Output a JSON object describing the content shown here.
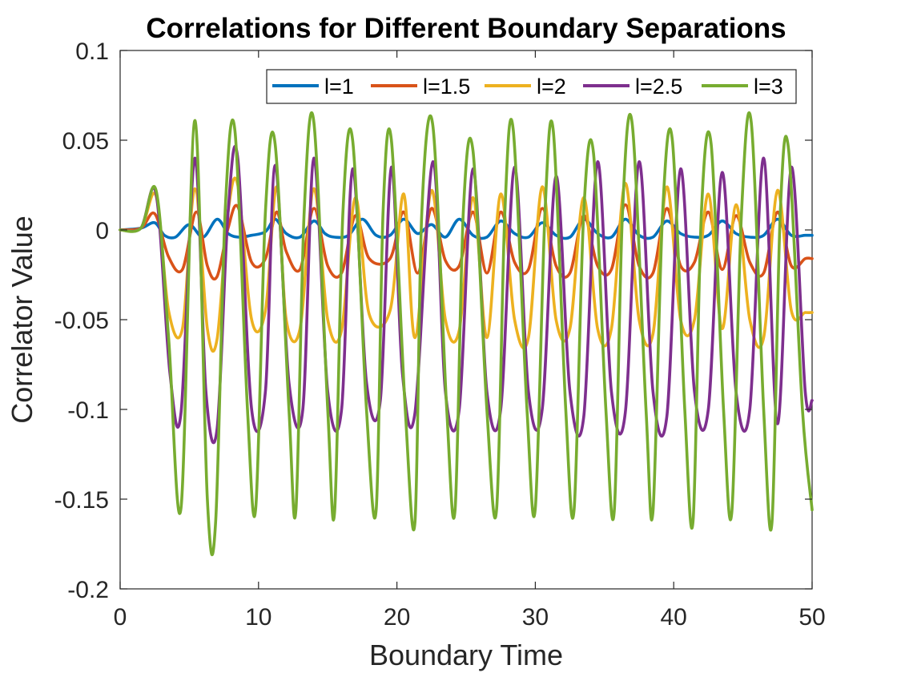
{
  "chart_data": {
    "type": "line",
    "title": "Correlations for Different Boundary Separations",
    "xlabel": "Boundary Time",
    "ylabel": "Correlator Value",
    "xlim": [
      0,
      50
    ],
    "ylim": [
      -0.2,
      0.1
    ],
    "xticks": [
      0,
      10,
      20,
      30,
      40,
      50
    ],
    "xtick_labels": [
      "0",
      "10",
      "20",
      "30",
      "40",
      "50"
    ],
    "yticks": [
      0.1,
      0.05,
      0,
      -0.05,
      -0.1,
      -0.15,
      -0.2
    ],
    "ytick_labels": [
      "0.1",
      "0.05",
      "0",
      "-0.05",
      "-0.1",
      "-0.15",
      "-0.2"
    ],
    "grid": false,
    "legend_position": "top-right",
    "legend_orientation": "horizontal",
    "series": [
      {
        "name": "l=1",
        "color": "#0072BD",
        "x": [
          0,
          1.5,
          2.5,
          3.2,
          4,
          5,
          6,
          7,
          7.8,
          8.6,
          9.5,
          10.5,
          11.2,
          12,
          13,
          14,
          14.8,
          15.5,
          16.5,
          17.5,
          18.5,
          19.5,
          20.5,
          21.5,
          22.5,
          23.5,
          24.5,
          25.5,
          26.5,
          27.5,
          28.5,
          29.5,
          30.5,
          31.5,
          32.5,
          33.5,
          34.5,
          35.5,
          36.5,
          37.5,
          38.5,
          39.5,
          40.5,
          41.5,
          42.5,
          43.5,
          44.5,
          45.5,
          46.5,
          47.5,
          48.5,
          49.5,
          50
        ],
        "y": [
          0,
          0.001,
          0.004,
          -0.003,
          -0.004,
          0.003,
          -0.004,
          0.006,
          -0.002,
          -0.004,
          -0.003,
          -0.001,
          0.006,
          -0.002,
          -0.004,
          0.005,
          -0.002,
          -0.004,
          -0.003,
          0.006,
          -0.003,
          -0.003,
          0.006,
          -0.002,
          0.003,
          -0.004,
          0.006,
          -0.003,
          -0.004,
          0.005,
          -0.002,
          -0.004,
          0.004,
          -0.003,
          -0.004,
          0.006,
          -0.002,
          -0.004,
          0.006,
          -0.003,
          -0.004,
          0.005,
          -0.002,
          -0.004,
          -0.003,
          0.005,
          -0.002,
          -0.004,
          -0.003,
          0.006,
          -0.003,
          -0.003,
          -0.003
        ]
      },
      {
        "name": "l=1.5",
        "color": "#D95319",
        "x": [
          0,
          1.5,
          2.5,
          3.5,
          4.5,
          5.5,
          6.3,
          7,
          7.8,
          8.5,
          9.5,
          10.5,
          11.3,
          12,
          13,
          14,
          15,
          16,
          17,
          18,
          19.5,
          20.5,
          21.5,
          22.5,
          23.5,
          24.5,
          25.5,
          26.5,
          27.5,
          28.5,
          29.5,
          30.5,
          31.5,
          32.5,
          33.5,
          34.5,
          35.5,
          36.5,
          37.5,
          38.5,
          39.5,
          40.5,
          41.5,
          42.5,
          43.5,
          44.5,
          45.5,
          46.5,
          47.5,
          48.5,
          49.5,
          50
        ],
        "y": [
          0,
          0.001,
          0.009,
          -0.015,
          -0.022,
          0.01,
          -0.02,
          -0.026,
          0.001,
          0.013,
          -0.018,
          -0.016,
          0.01,
          -0.012,
          -0.022,
          0.012,
          -0.02,
          -0.024,
          0.008,
          -0.016,
          -0.016,
          0.01,
          -0.024,
          0.012,
          -0.017,
          -0.02,
          0.01,
          -0.024,
          0.01,
          -0.018,
          -0.022,
          0.012,
          -0.02,
          -0.024,
          0.008,
          -0.02,
          -0.022,
          0.014,
          -0.02,
          -0.024,
          0.012,
          -0.02,
          -0.018,
          0.01,
          -0.022,
          0.008,
          -0.018,
          -0.024,
          0.01,
          -0.02,
          -0.016,
          -0.016
        ]
      },
      {
        "name": "l=2",
        "color": "#EDB120",
        "x": [
          0,
          1.5,
          2.6,
          3.5,
          4.5,
          5.4,
          6.3,
          7,
          7.8,
          8.5,
          9.5,
          10.5,
          11.3,
          12,
          13,
          14,
          15,
          16,
          17,
          18,
          19.5,
          20.5,
          21.3,
          22.5,
          23.5,
          24.5,
          25.5,
          26.5,
          27.5,
          28.5,
          29.5,
          30.5,
          31.5,
          32.5,
          33.5,
          34.5,
          35.5,
          36.5,
          37.5,
          38.5,
          39.5,
          40.5,
          41.5,
          42.5,
          43.5,
          44.5,
          45.5,
          46.5,
          47.5,
          48.5,
          49.5,
          50
        ],
        "y": [
          0,
          0.001,
          0.019,
          -0.045,
          -0.055,
          0.023,
          -0.055,
          -0.061,
          0.01,
          0.025,
          -0.05,
          -0.045,
          0.024,
          -0.05,
          -0.055,
          0.023,
          -0.05,
          -0.056,
          0.018,
          -0.047,
          -0.045,
          0.02,
          -0.06,
          0.022,
          -0.05,
          -0.056,
          0.018,
          -0.06,
          0.02,
          -0.05,
          -0.06,
          0.024,
          -0.05,
          -0.055,
          0.018,
          -0.055,
          -0.055,
          0.026,
          -0.05,
          -0.058,
          0.024,
          -0.05,
          -0.05,
          0.02,
          -0.055,
          0.014,
          -0.05,
          -0.06,
          0.022,
          -0.045,
          -0.046,
          -0.046
        ]
      },
      {
        "name": "l=2.5",
        "color": "#7E2F8E",
        "x": [
          0,
          1.5,
          2.6,
          3.6,
          4.4,
          5.4,
          6.2,
          7,
          7.8,
          8.5,
          9.5,
          10.5,
          11.2,
          12.2,
          13.2,
          14,
          15,
          16,
          16.8,
          17.8,
          18.8,
          19.6,
          20.4,
          21.3,
          22.6,
          23.5,
          24.5,
          25.5,
          26.5,
          27.5,
          28.5,
          29.5,
          30.5,
          31.5,
          32.5,
          33.5,
          34.5,
          35.5,
          36.5,
          37.5,
          38.5,
          39.5,
          40.5,
          41.5,
          42.5,
          43.5,
          44.5,
          45.5,
          46.5,
          47.5,
          48.5,
          49.5,
          50
        ],
        "y": [
          0,
          0.001,
          0.02,
          -0.08,
          -0.102,
          0.04,
          -0.09,
          -0.111,
          0.01,
          0.04,
          -0.1,
          -0.09,
          0.036,
          -0.085,
          -0.1,
          0.04,
          -0.09,
          -0.1,
          0.034,
          -0.085,
          -0.095,
          0.035,
          -0.08,
          -0.102,
          0.038,
          -0.09,
          -0.1,
          0.034,
          -0.09,
          -0.1,
          0.035,
          -0.09,
          -0.1,
          0.03,
          -0.09,
          -0.104,
          0.038,
          -0.09,
          -0.102,
          0.038,
          -0.09,
          -0.104,
          0.034,
          -0.09,
          -0.1,
          0.032,
          -0.09,
          -0.1,
          0.04,
          -0.108,
          0.035,
          -0.09,
          -0.095
        ]
      },
      {
        "name": "l=3",
        "color": "#77AC30",
        "x": [
          0,
          1.5,
          2.6,
          3.5,
          4.4,
          5.4,
          6.3,
          6.9,
          7.6,
          8.3,
          9.2,
          9.8,
          10.5,
          11.2,
          12.2,
          12.7,
          13.3,
          14,
          15,
          15.5,
          16.1,
          16.8,
          17.8,
          18.5,
          19,
          19.6,
          20.6,
          21.3,
          21.8,
          22.6,
          23.6,
          24.2,
          24.8,
          25.5,
          26.5,
          27.2,
          27.8,
          28.4,
          29.4,
          30,
          30.7,
          31.3,
          32.2,
          32.8,
          33.5,
          34.2,
          35.1,
          35.7,
          36.3,
          37,
          38,
          38.5,
          39.2,
          39.9,
          40.8,
          41.4,
          42,
          42.7,
          43.6,
          44.2,
          44.9,
          45.6,
          46.5,
          47.1,
          47.7,
          48.3,
          49.3,
          50
        ],
        "y": [
          0,
          0.001,
          0.022,
          -0.06,
          -0.155,
          0.061,
          -0.15,
          -0.163,
          0.012,
          0.055,
          -0.1,
          -0.155,
          0.01,
          0.048,
          -0.1,
          -0.156,
          0.01,
          0.06,
          -0.1,
          -0.157,
          0.01,
          0.05,
          -0.1,
          -0.156,
          0.01,
          0.05,
          -0.1,
          -0.163,
          0.01,
          0.058,
          -0.1,
          -0.156,
          0.01,
          0.044,
          -0.1,
          -0.156,
          0.01,
          0.056,
          -0.1,
          -0.155,
          0.01,
          0.055,
          -0.1,
          -0.156,
          0.01,
          0.043,
          -0.1,
          -0.157,
          0.01,
          0.059,
          -0.1,
          -0.157,
          0.01,
          0.05,
          -0.1,
          -0.162,
          0.01,
          0.048,
          -0.1,
          -0.157,
          0.01,
          0.06,
          -0.1,
          -0.163,
          0.01,
          0.045,
          -0.1,
          -0.156
        ]
      }
    ]
  }
}
